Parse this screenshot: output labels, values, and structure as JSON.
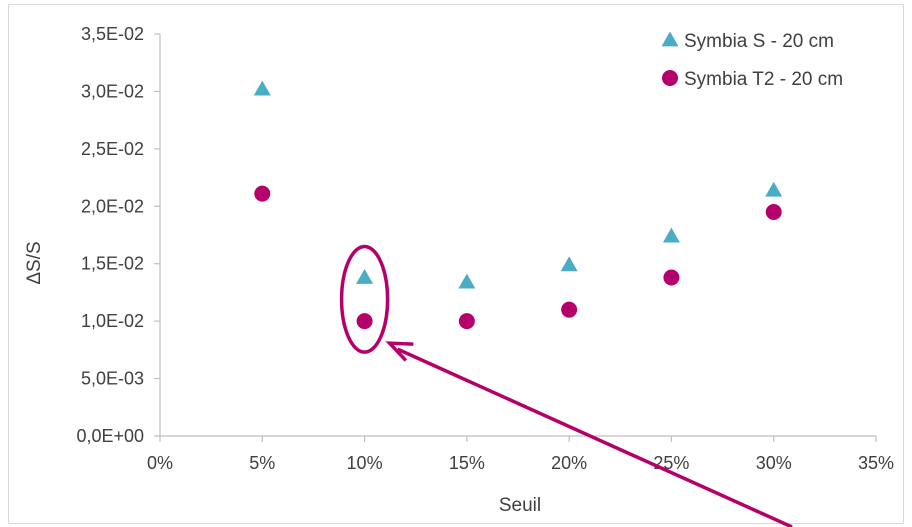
{
  "chart_data": {
    "type": "scatter",
    "title": "",
    "xlabel": "Seuil",
    "ylabel": "ΔS/S",
    "xlim": [
      0,
      35
    ],
    "ylim": [
      0,
      0.035
    ],
    "x_ticks": [
      "0%",
      "5%",
      "10%",
      "15%",
      "20%",
      "25%",
      "30%",
      "35%"
    ],
    "y_ticks": [
      "0,0E+00",
      "5,0E-03",
      "1,0E-02",
      "1,5E-02",
      "2,0E-02",
      "2,5E-02",
      "3,0E-02",
      "3,5E-02"
    ],
    "legend_position": "top-right",
    "grid": false,
    "series": [
      {
        "name": "Symbia S - 20 cm",
        "marker": "triangle",
        "color": "#4bacc6",
        "x": [
          5,
          10,
          15,
          20,
          25,
          30
        ],
        "y": [
          0.0302,
          0.0138,
          0.0134,
          0.0149,
          0.0174,
          0.0214
        ]
      },
      {
        "name": "Symbia T2 - 20 cm",
        "marker": "circle",
        "color": "#b5006b",
        "x": [
          5,
          10,
          15,
          20,
          25,
          30
        ],
        "y": [
          0.0211,
          0.01,
          0.01,
          0.011,
          0.0138,
          0.0195
        ]
      }
    ],
    "annotations": [
      {
        "type": "ellipse",
        "around": {
          "x": 10,
          "y_range": [
            0.01,
            0.0138
          ]
        },
        "color": "#b5006b"
      },
      {
        "type": "arrow",
        "points_to": {
          "x": 10,
          "y": 0.01
        },
        "color": "#b5006b"
      }
    ]
  }
}
